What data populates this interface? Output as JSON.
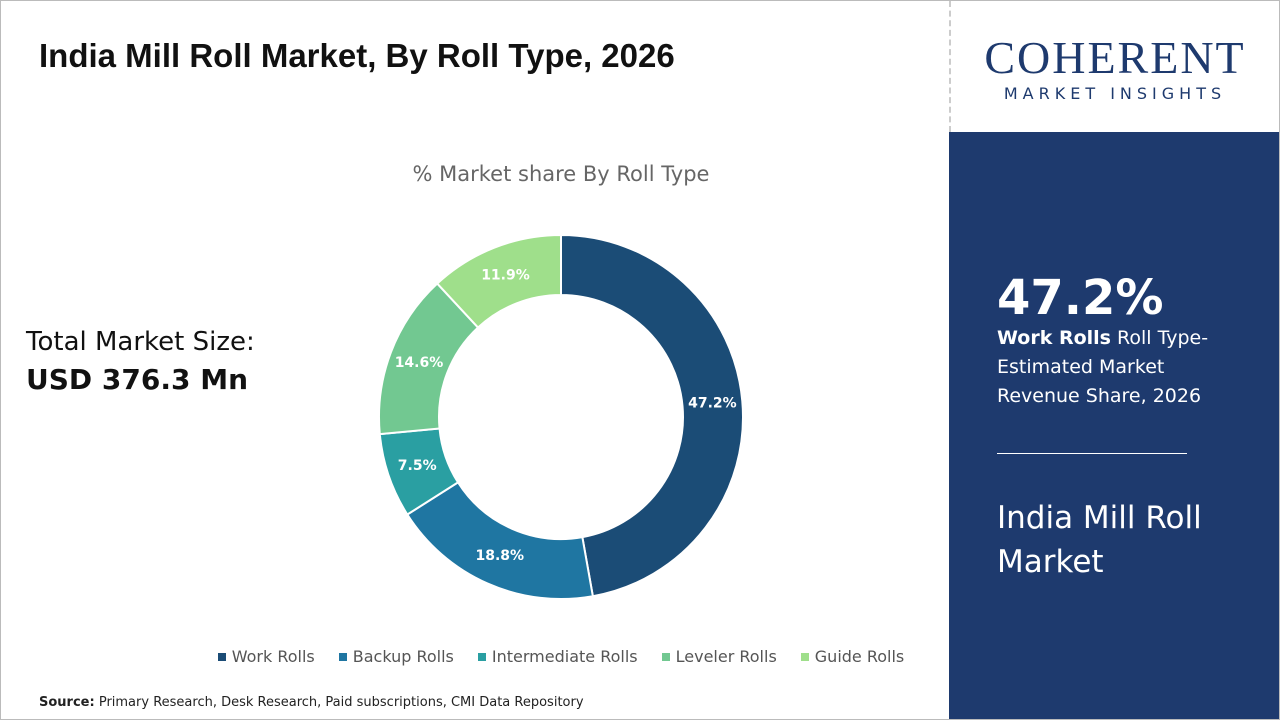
{
  "header": {
    "title": "India Mill Roll Market, By Roll Type, 2026"
  },
  "logo": {
    "name": "COHERENT",
    "tagline": "MARKET INSIGHTS"
  },
  "market_size": {
    "label": "Total Market Size:",
    "value": "USD 376.3 Mn"
  },
  "chart_data": {
    "type": "donut",
    "title": "% Market share By Roll Type",
    "categories": [
      "Work Rolls",
      "Backup Rolls",
      "Intermediate Rolls",
      "Leveler Rolls",
      "Guide Rolls"
    ],
    "values": [
      47.2,
      18.8,
      7.5,
      14.6,
      11.9
    ],
    "value_labels": [
      "47.2%",
      "18.8%",
      "7.5%",
      "14.6%",
      "11.9%"
    ],
    "colors": [
      "#1b4c76",
      "#1f76a2",
      "#2a9fa2",
      "#72c891",
      "#9fdf8b"
    ]
  },
  "side_panel": {
    "highlight": "47.2%",
    "segment": "Work Rolls",
    "description": "Roll Type-Estimated Market Revenue Share, 2026",
    "market": "India Mill Roll Market"
  },
  "footer": {
    "source_label": "Source:",
    "source": "Primary Research, Desk Research, Paid subscriptions, CMI Data Repository"
  }
}
